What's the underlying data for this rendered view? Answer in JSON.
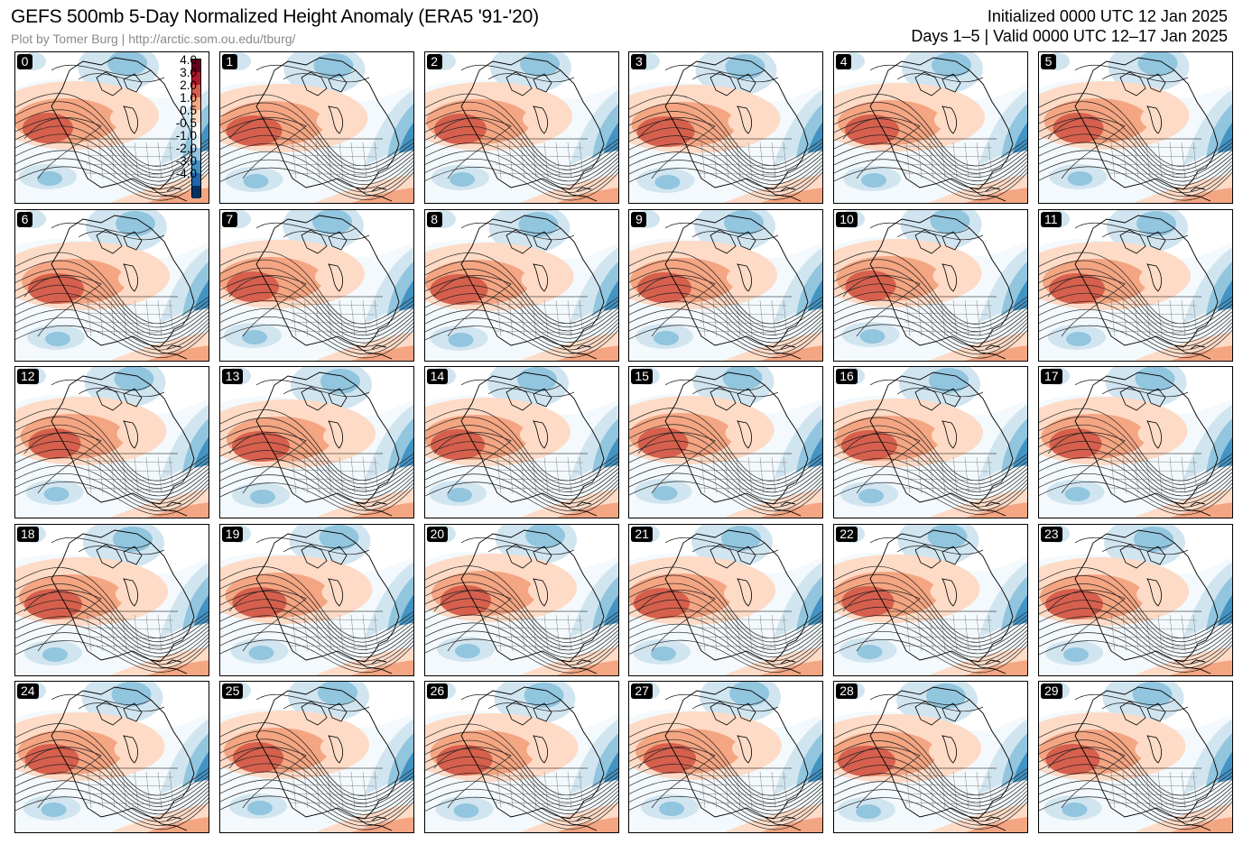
{
  "header": {
    "title": "GEFS 500mb 5-Day Normalized Height Anomaly (ERA5 '91-'20)",
    "credit": "Plot by Tomer Burg | http://arctic.som.ou.edu/tburg/",
    "initialized": "Initialized 0000 UTC 12 Jan 2025",
    "valid": "Days 1–5 | Valid 0000 UTC 12–17 Jan 2025"
  },
  "colorbar": {
    "labels": [
      "4.0",
      "3.0",
      "2.0",
      "1.0",
      "0.5",
      "-0.5",
      "-1.0",
      "-2.0",
      "-3.0",
      "-4.0"
    ],
    "colors": [
      "#67001f",
      "#b2182b",
      "#d6604d",
      "#f4a582",
      "#fddbc7",
      "#ffffff",
      "#e0f0f8",
      "#92c5de",
      "#4393c3",
      "#2166ac",
      "#053061"
    ]
  },
  "panels": [
    {
      "label": "0"
    },
    {
      "label": "1"
    },
    {
      "label": "2"
    },
    {
      "label": "3"
    },
    {
      "label": "4"
    },
    {
      "label": "5"
    },
    {
      "label": "6"
    },
    {
      "label": "7"
    },
    {
      "label": "8"
    },
    {
      "label": "9"
    },
    {
      "label": "10"
    },
    {
      "label": "11"
    },
    {
      "label": "12"
    },
    {
      "label": "13"
    },
    {
      "label": "14"
    },
    {
      "label": "15"
    },
    {
      "label": "16"
    },
    {
      "label": "17"
    },
    {
      "label": "18"
    },
    {
      "label": "19"
    },
    {
      "label": "20"
    },
    {
      "label": "21"
    },
    {
      "label": "22"
    },
    {
      "label": "23"
    },
    {
      "label": "24"
    },
    {
      "label": "25"
    },
    {
      "label": "26"
    },
    {
      "label": "27"
    },
    {
      "label": "28"
    },
    {
      "label": "29"
    }
  ]
}
